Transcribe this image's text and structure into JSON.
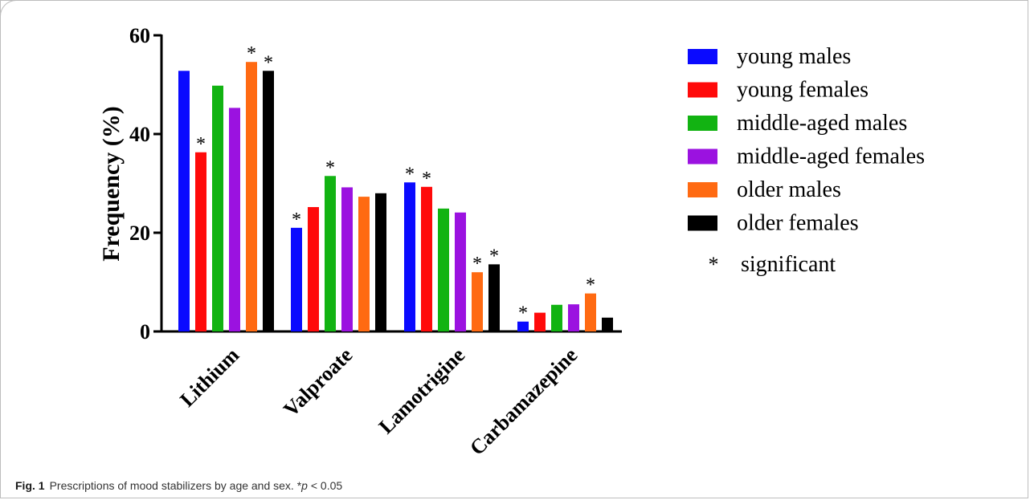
{
  "caption": {
    "label": "Fig. 1",
    "text_before": "Prescriptions of mood stabilizers by age and sex. *",
    "p_symbol": "p",
    "text_after": " < 0.05"
  },
  "colors": {
    "young males": "#0a0aff",
    "young females": "#ff0a0a",
    "middle-aged males": "#12b312",
    "middle-aged females": "#9b12e0",
    "older males": "#ff6a12",
    "older females": "#000000"
  },
  "chart_data": {
    "type": "bar",
    "title": "",
    "xlabel": "",
    "ylabel": "Frequency (%)",
    "ylim": [
      0,
      60
    ],
    "yticks": [
      "0",
      "20",
      "40",
      "60"
    ],
    "grid": false,
    "legend_position": "right",
    "categories": [
      "Lithium",
      "Valproate",
      "Lamotrigine",
      "Carbamazepine"
    ],
    "series": [
      {
        "name": "young males",
        "values": [
          52.8,
          21.0,
          30.2,
          2.0
        ],
        "significant": [
          false,
          true,
          true,
          true
        ]
      },
      {
        "name": "young females",
        "values": [
          36.3,
          25.2,
          29.3,
          3.8
        ],
        "significant": [
          true,
          false,
          true,
          false
        ]
      },
      {
        "name": "middle-aged males",
        "values": [
          49.8,
          31.5,
          24.9,
          5.4
        ],
        "significant": [
          false,
          true,
          false,
          false
        ]
      },
      {
        "name": "middle-aged females",
        "values": [
          45.3,
          29.2,
          24.1,
          5.5
        ],
        "significant": [
          false,
          false,
          false,
          false
        ]
      },
      {
        "name": "older males",
        "values": [
          54.6,
          27.3,
          12.0,
          7.7
        ],
        "significant": [
          true,
          false,
          true,
          true
        ]
      },
      {
        "name": "older females",
        "values": [
          52.8,
          28.0,
          13.6,
          2.8
        ],
        "significant": [
          true,
          false,
          true,
          false
        ]
      }
    ],
    "significance_marker": "*",
    "legend_extra": {
      "marker": "*",
      "label": "significant"
    }
  }
}
